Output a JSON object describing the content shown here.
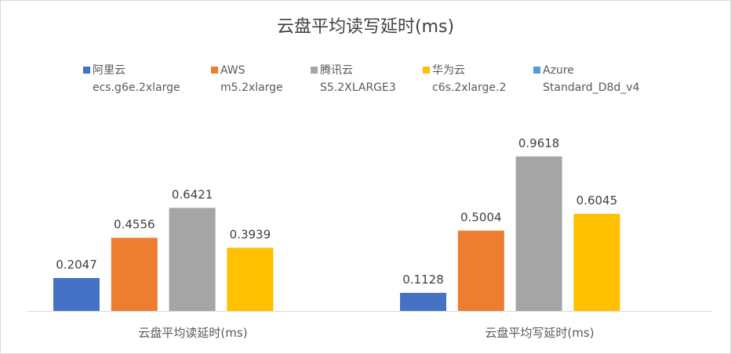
{
  "chart_data": {
    "type": "bar",
    "title": "云盘平均读写延时(ms)",
    "categories": [
      "云盘平均读延时(ms)",
      "云盘平均写延时(ms)"
    ],
    "series": [
      {
        "name": "阿里云\necs.g6e.2xlarge",
        "color": "#4472c4",
        "values": [
          0.2047,
          0.1128
        ]
      },
      {
        "name": "AWS\nm5.2xlarge",
        "color": "#ed7d31",
        "values": [
          0.4556,
          0.5004
        ]
      },
      {
        "name": "腾讯云\nS5.2XLARGE3",
        "color": "#a5a5a5",
        "values": [
          0.6421,
          0.9618
        ]
      },
      {
        "name": "华为云\nc6s.2xlarge.2",
        "color": "#ffc000",
        "values": [
          0.3939,
          0.6045
        ]
      },
      {
        "name": "Azure\nStandard_D8d_v4",
        "color": "#5b9bd5",
        "values": [
          null,
          null
        ]
      }
    ],
    "ylim": [
      0,
      1.1
    ],
    "grid": false,
    "legend_position": "top"
  }
}
